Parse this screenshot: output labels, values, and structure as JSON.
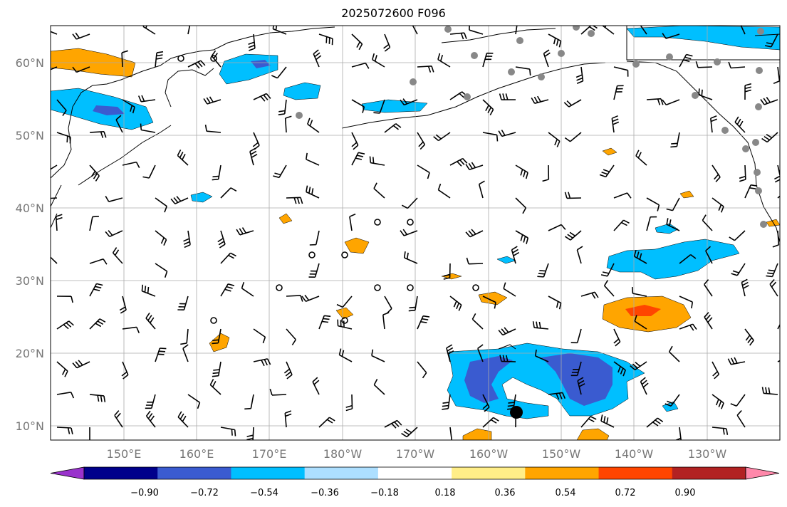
{
  "title": "2025072600 F096",
  "lat_labels": [
    "10°N",
    "20°N",
    "30°N",
    "40°N",
    "50°N",
    "60°N"
  ],
  "lon_labels": [
    "150°E",
    "160°E",
    "170°E",
    "180°W",
    "170°W",
    "160°W",
    "150°W",
    "140°W",
    "130°W"
  ],
  "colorbar": {
    "ticks": [
      "−0.90",
      "−0.72",
      "−0.54",
      "−0.36",
      "−0.18",
      "0.18",
      "0.36",
      "0.54",
      "0.72",
      "0.90"
    ],
    "colors": [
      "#9932CC",
      "#00008B",
      "#3A5BD0",
      "#00BFFF",
      "#ADDFFF",
      "#FFFFFF",
      "#FFEE88",
      "#FFA500",
      "#FF4500",
      "#B22222",
      "#FF88AA"
    ]
  },
  "colors": {
    "land_outline": "#000000",
    "grid": "#aaaaaa",
    "station_dots": "#888888",
    "storm_marker": "#000000"
  }
}
